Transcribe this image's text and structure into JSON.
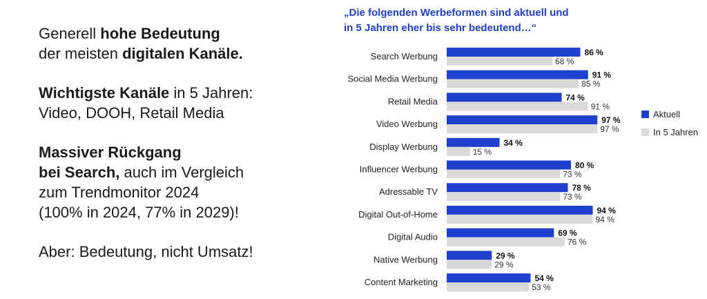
{
  "summary": {
    "p1_pre": "Generell ",
    "p1_b1": "hohe Bedeutung",
    "p1_mid": "der meisten ",
    "p1_b2": "digitalen Kanäle.",
    "p2_b": "Wichtigste Kanäle",
    "p2_rest": " in 5 Jahren:",
    "p2_line2": "Video, DOOH, Retail Media",
    "p3_b1": "Massiver Rückgang",
    "p3_b2": "bei Search,",
    "p3_rest1": " auch im Vergleich",
    "p3_line3": "zum Trendmonitor 2024",
    "p3_line4": "(100% in 2024, 77% in 2029)!",
    "p4": "Aber: Bedeutung, nicht Umsatz!"
  },
  "chart_data": {
    "type": "bar",
    "orientation": "horizontal",
    "title_line1": "„Die folgenden Werbeformen sind aktuell und",
    "title_line2": "in 5 Jahren eher bis sehr bedeutend…“",
    "categories": [
      "Search Werbung",
      "Social Media Werbung",
      "Retail Media",
      "Video Werbung",
      "Display Werbung",
      "Influencer Werbung",
      "Adressable TV",
      "Digital Out-of-Home",
      "Digital Audio",
      "Native Werbung",
      "Content Marketing"
    ],
    "series": [
      {
        "name": "Aktuell",
        "color": "#1f3fcf",
        "values": [
          86,
          91,
          74,
          97,
          34,
          80,
          78,
          94,
          69,
          29,
          54
        ],
        "labels": [
          "86 %",
          "91 %",
          "74 %",
          "97 %",
          "34 %",
          "80 %",
          "78 %",
          "94 %",
          "69 %",
          "29 %",
          "54 %"
        ]
      },
      {
        "name": "In 5 Jahren",
        "color": "#d9d9d9",
        "values": [
          68,
          85,
          91,
          97,
          15,
          73,
          73,
          94,
          76,
          29,
          53
        ],
        "labels": [
          "68 %",
          "85 %",
          "91 %",
          "97 %",
          "15 %",
          "73 %",
          "73 %",
          "94 %",
          "76 %",
          "29 %",
          "53 %"
        ]
      }
    ],
    "xlim": [
      0,
      100
    ],
    "legend": "right"
  }
}
